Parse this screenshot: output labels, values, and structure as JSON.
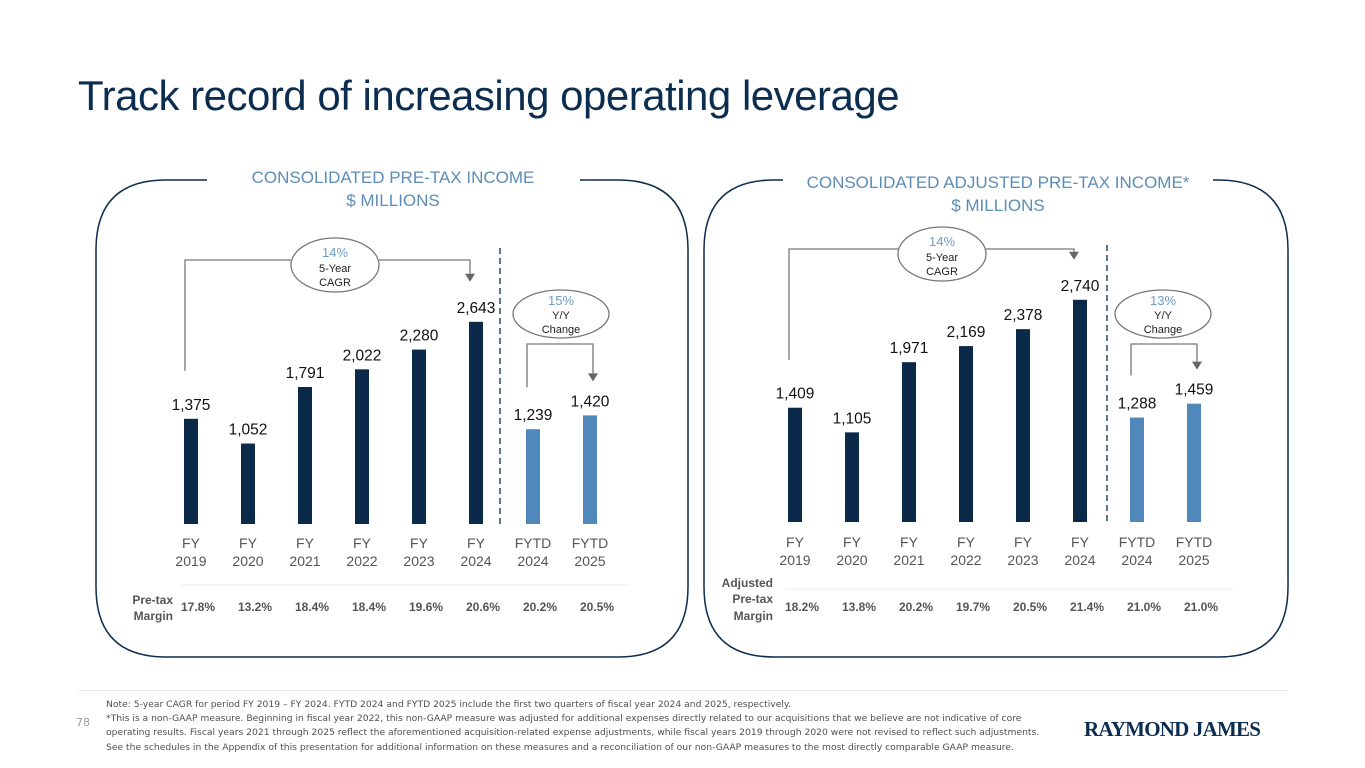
{
  "page": {
    "title": "Track record of increasing operating leverage",
    "page_number": "78",
    "logo": "RAYMOND JAMES",
    "notes": [
      "Note: 5-year CAGR for period FY 2019 – FY 2024. FYTD 2024 and FYTD 2025 include the first two quarters of fiscal year 2024 and 2025, respectively.",
      "*This is a non-GAAP measure. Beginning in fiscal year 2022, this non-GAAP measure was adjusted for additional expenses directly related to our acquisitions that we believe are not indicative of core",
      "operating results. Fiscal years 2021 through 2025 reflect the aforementioned acquisition-related expense adjustments, while fiscal years 2019 through 2020 were not revised to reflect such adjustments.",
      "See the schedules in the Appendix of this presentation for additional information on these measures and a reconciliation of our non-GAAP measures to the most directly comparable GAAP measure."
    ]
  },
  "colors": {
    "fy_bar": "#0b2a4a",
    "fytd_bar": "#5088bb",
    "panel_title": "#5b8db8",
    "title": "#0b2d4f",
    "annotation_pct": "#6f9cc6"
  },
  "chart_data": [
    {
      "type": "bar",
      "title": "CONSOLIDATED PRE-TAX INCOME",
      "subtitle": "$ MILLIONS",
      "categories": [
        "FY 2019",
        "FY 2020",
        "FY 2021",
        "FY 2022",
        "FY 2023",
        "FY 2024",
        "FYTD 2024",
        "FYTD 2025"
      ],
      "category_lines": [
        [
          "FY",
          "2019"
        ],
        [
          "FY",
          "2020"
        ],
        [
          "FY",
          "2021"
        ],
        [
          "FY",
          "2022"
        ],
        [
          "FY",
          "2023"
        ],
        [
          "FY",
          "2024"
        ],
        [
          "FYTD",
          "2024"
        ],
        [
          "FYTD",
          "2025"
        ]
      ],
      "values": [
        1375,
        1052,
        1791,
        2022,
        2280,
        2643,
        1239,
        1420
      ],
      "value_labels": [
        "1,375",
        "1,052",
        "1,791",
        "2,022",
        "2,280",
        "2,643",
        "1,239",
        "1,420"
      ],
      "series_type": [
        "FY",
        "FY",
        "FY",
        "FY",
        "FY",
        "FY",
        "FYTD",
        "FYTD"
      ],
      "cagr": {
        "pct": "14%",
        "label_lines": [
          "5-Year",
          "CAGR"
        ],
        "from": 0,
        "to": 5
      },
      "yoy": {
        "pct": "15%",
        "label_lines": [
          "Y/Y",
          "Change"
        ],
        "from": 6,
        "to": 7
      },
      "margin_label_lines": [
        "Pre-tax",
        "Margin"
      ],
      "margins": [
        "17.8%",
        "13.2%",
        "18.4%",
        "18.4%",
        "19.6%",
        "20.6%",
        "20.2%",
        "20.5%"
      ],
      "ylim": [
        0,
        2800
      ],
      "xlabel": "",
      "ylabel": ""
    },
    {
      "type": "bar",
      "title": "CONSOLIDATED ADJUSTED PRE-TAX INCOME*",
      "subtitle": "$ MILLIONS",
      "categories": [
        "FY 2019",
        "FY 2020",
        "FY 2021",
        "FY 2022",
        "FY 2023",
        "FY 2024",
        "FYTD 2024",
        "FYTD 2025"
      ],
      "category_lines": [
        [
          "FY",
          "2019"
        ],
        [
          "FY",
          "2020"
        ],
        [
          "FY",
          "2021"
        ],
        [
          "FY",
          "2022"
        ],
        [
          "FY",
          "2023"
        ],
        [
          "FY",
          "2024"
        ],
        [
          "FYTD",
          "2024"
        ],
        [
          "FYTD",
          "2025"
        ]
      ],
      "values": [
        1409,
        1105,
        1971,
        2169,
        2378,
        2740,
        1288,
        1459
      ],
      "value_labels": [
        "1,409",
        "1,105",
        "1,971",
        "2,169",
        "2,378",
        "2,740",
        "1,288",
        "1,459"
      ],
      "series_type": [
        "FY",
        "FY",
        "FY",
        "FY",
        "FY",
        "FY",
        "FYTD",
        "FYTD"
      ],
      "cagr": {
        "pct": "14%",
        "label_lines": [
          "5-Year",
          "CAGR"
        ],
        "from": 0,
        "to": 5
      },
      "yoy": {
        "pct": "13%",
        "label_lines": [
          "Y/Y",
          "Change"
        ],
        "from": 6,
        "to": 7
      },
      "margin_label_lines": [
        "Adjusted",
        "Pre-tax",
        "Margin"
      ],
      "margins": [
        "18.2%",
        "13.8%",
        "20.2%",
        "19.7%",
        "20.5%",
        "21.4%",
        "21.0%",
        "21.0%"
      ],
      "ylim": [
        0,
        2800
      ],
      "xlabel": "",
      "ylabel": ""
    }
  ]
}
